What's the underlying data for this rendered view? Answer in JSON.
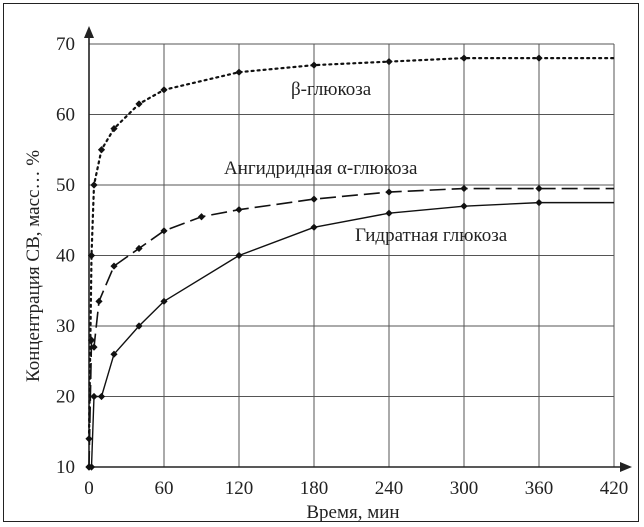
{
  "chart_data": {
    "type": "line",
    "title": "",
    "xlabel": "Время, мин",
    "ylabel": "Концентрация СВ, масс… %",
    "xlim": [
      0,
      420
    ],
    "ylim": [
      10,
      70
    ],
    "x_ticks": [
      "0",
      "60",
      "120",
      "180",
      "240",
      "300",
      "360",
      "420"
    ],
    "y_ticks": [
      "10",
      "20",
      "30",
      "40",
      "50",
      "60",
      "70"
    ],
    "grid": true,
    "legend": "none",
    "series": [
      {
        "name": "β-глюкоза",
        "style": "dotted",
        "x": [
          0,
          2,
          4,
          10,
          20,
          40,
          60,
          120,
          180,
          240,
          300,
          360,
          420
        ],
        "y": [
          14,
          40,
          50,
          55,
          58,
          61.5,
          63.5,
          66,
          67,
          67.5,
          68,
          68,
          68
        ]
      },
      {
        "name": "Ангидридная α-глюкоза",
        "style": "dashed",
        "x": [
          0,
          2,
          4,
          8,
          20,
          40,
          60,
          90,
          120,
          180,
          240,
          300,
          360,
          420
        ],
        "y": [
          10,
          28,
          27,
          33.5,
          38.5,
          41,
          43.5,
          45.5,
          46.5,
          48,
          49,
          49.5,
          49.5,
          49.5
        ]
      },
      {
        "name": "Гидратная глюкоза",
        "style": "solid",
        "x": [
          0,
          2,
          4,
          10,
          20,
          40,
          60,
          120,
          180,
          240,
          300,
          360,
          420
        ],
        "y": [
          10,
          10,
          20,
          20,
          26,
          30,
          33.5,
          40,
          44,
          46,
          47,
          47.5,
          47.5
        ]
      }
    ]
  }
}
